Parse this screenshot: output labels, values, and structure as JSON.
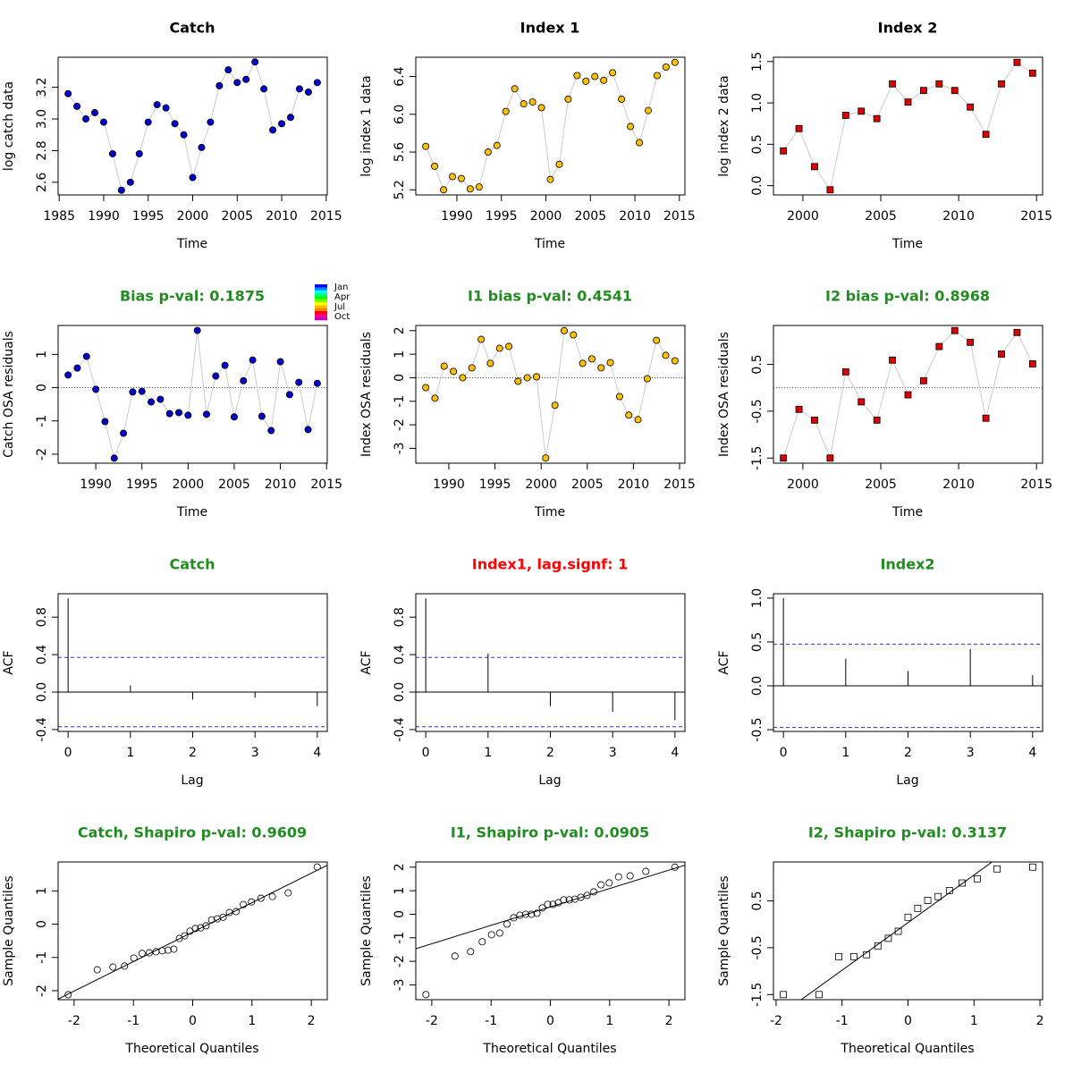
{
  "chart_data": [
    {
      "type": "line",
      "title": "Catch",
      "title_color": "#000000",
      "xlabel": "Time",
      "ylabel": "log catch data",
      "color": "#0000cd",
      "marker": "circle",
      "line_color": "#cccccc",
      "x": [
        1986,
        1987,
        1988,
        1989,
        1990,
        1991,
        1992,
        1993,
        1994,
        1995,
        1996,
        1997,
        1998,
        1999,
        2000,
        2001,
        2002,
        2003,
        2004,
        2005,
        2006,
        2007,
        2008,
        2009,
        2010,
        2011,
        2012,
        2013,
        2014
      ],
      "values": [
        3.16,
        3.08,
        3.0,
        3.04,
        2.98,
        2.78,
        2.55,
        2.6,
        2.78,
        2.98,
        3.09,
        3.07,
        2.97,
        2.9,
        2.63,
        2.82,
        2.98,
        3.21,
        3.31,
        3.23,
        3.25,
        3.36,
        3.19,
        2.93,
        2.97,
        3.01,
        3.19,
        3.17,
        3.23
      ],
      "xlim": [
        1984.88,
        2015.12
      ],
      "ylim": [
        2.52,
        3.39
      ],
      "xticks": [
        1985,
        1990,
        1995,
        2000,
        2005,
        2010,
        2015
      ],
      "yticks": [
        2.6,
        2.8,
        {
          "value": 3,
          "label": "3.0"
        },
        3.2
      ]
    },
    {
      "type": "line",
      "title": "Index 1",
      "title_color": "#000000",
      "xlabel": "Time",
      "ylabel": "log index 1 data",
      "color": "#ffc000",
      "marker": "circle",
      "line_color": "#cccccc",
      "x": [
        1986.5,
        1987.5,
        1988.5,
        1989.5,
        1990.5,
        1991.5,
        1992.5,
        1993.5,
        1994.5,
        1995.5,
        1996.5,
        1997.5,
        1998.5,
        1999.5,
        2000.5,
        2001.5,
        2002.5,
        2003.5,
        2004.5,
        2005.5,
        2006.5,
        2007.5,
        2008.5,
        2009.5,
        2010.5,
        2011.5,
        2012.5,
        2013.5,
        2014.5
      ],
      "values": [
        5.66,
        5.45,
        5.2,
        5.34,
        5.32,
        5.21,
        5.23,
        5.6,
        5.67,
        6.03,
        6.27,
        6.11,
        6.13,
        6.07,
        5.31,
        5.47,
        6.16,
        6.41,
        6.35,
        6.4,
        6.36,
        6.44,
        6.16,
        5.87,
        5.7,
        6.04,
        6.41,
        6.5,
        6.55
      ],
      "xlim": [
        1985.38,
        2015.62
      ],
      "ylim": [
        5.146,
        6.604
      ],
      "xticks": [
        1990,
        1995,
        2000,
        2005,
        2010,
        2015
      ],
      "yticks": [
        5.2,
        5.6,
        {
          "value": 6,
          "label": "6.0"
        },
        6.4
      ]
    },
    {
      "type": "line",
      "title": "Index 2",
      "title_color": "#000000",
      "xlabel": "Time",
      "ylabel": "log index 2 data",
      "color": "#dd0000",
      "marker": "square",
      "line_color": "#cccccc",
      "x": [
        1998.75,
        1999.75,
        2000.75,
        2001.75,
        2002.75,
        2003.75,
        2004.75,
        2005.75,
        2006.75,
        2007.75,
        2008.75,
        2009.75,
        2010.75,
        2011.75,
        2012.75,
        2013.75,
        2014.75
      ],
      "values": [
        0.42,
        0.69,
        0.23,
        -0.05,
        0.85,
        0.9,
        0.81,
        1.23,
        1.01,
        1.15,
        1.23,
        1.15,
        0.95,
        0.62,
        1.23,
        1.49,
        1.36
      ],
      "xlim": [
        1998.11,
        2015.39
      ],
      "ylim": [
        -0.112,
        1.552
      ],
      "xticks": [
        2000,
        2005,
        2010,
        2015
      ],
      "yticks": [
        {
          "value": 0,
          "label": "0.0"
        },
        0.5,
        {
          "value": 1,
          "label": "1.0"
        },
        1.5
      ]
    },
    {
      "type": "line",
      "title": "Bias p-val: 0.1875",
      "title_color": "#228b22",
      "xlabel": "Time",
      "ylabel": "Catch OSA residuals",
      "color": "#0000cd",
      "marker": "circle",
      "line_color": "#cccccc",
      "zero_line": true,
      "legend_labels": [
        "Jan",
        "Apr",
        "Jul",
        "Oct"
      ],
      "legend_colors": [
        "#0000ff",
        "#0080ff",
        "#00ffff",
        "#00ff80",
        "#00ff00",
        "#80ff00",
        "#ffff00",
        "#ffc000",
        "#ff8000",
        "#ff0000",
        "#ff0080",
        "#c000c0"
      ],
      "x": [
        1987,
        1988,
        1989,
        1990,
        1991,
        1992,
        1993,
        1994,
        1995,
        1996,
        1997,
        1998,
        1999,
        2000,
        2001,
        2002,
        2003,
        2004,
        2005,
        2006,
        2007,
        2008,
        2009,
        2010,
        2011,
        2012,
        2013,
        2014
      ],
      "values": [
        0.38,
        0.59,
        0.94,
        -0.05,
        -1.02,
        -2.12,
        -1.37,
        -0.13,
        -0.11,
        -0.43,
        -0.35,
        -0.78,
        -0.75,
        -0.83,
        1.72,
        -0.8,
        0.35,
        0.67,
        -0.88,
        0.21,
        0.83,
        -0.86,
        -1.29,
        0.78,
        -0.21,
        0.16,
        -1.26,
        0.13
      ],
      "xlim": [
        1985.92,
        2015.08
      ],
      "ylim": [
        -2.27,
        1.87
      ],
      "xticks": [
        1990,
        1995,
        2000,
        2005,
        2010,
        2015
      ],
      "yticks": [
        -2,
        -1,
        0,
        1
      ]
    },
    {
      "type": "line",
      "title": "I1 bias p-val: 0.4541",
      "title_color": "#228b22",
      "xlabel": "Time",
      "ylabel": "Index OSA residuals",
      "color": "#ffc000",
      "marker": "circle",
      "line_color": "#cccccc",
      "zero_line": true,
      "x": [
        1987.5,
        1988.5,
        1989.5,
        1990.5,
        1991.5,
        1992.5,
        1993.5,
        1994.5,
        1995.5,
        1996.5,
        1997.5,
        1998.5,
        1999.5,
        2000.5,
        2001.5,
        2002.5,
        2003.5,
        2004.5,
        2005.5,
        2006.5,
        2007.5,
        2008.5,
        2009.5,
        2010.5,
        2011.5,
        2012.5,
        2013.5,
        2014.5
      ],
      "values": [
        -0.42,
        -0.87,
        0.49,
        0.27,
        0.0,
        0.42,
        1.63,
        0.61,
        1.25,
        1.33,
        -0.15,
        0.0,
        0.04,
        -3.41,
        -1.17,
        2.0,
        1.82,
        0.61,
        0.8,
        0.42,
        0.64,
        -0.8,
        -1.59,
        -1.78,
        -0.04,
        1.59,
        0.95,
        0.72
      ],
      "xlim": [
        1986.42,
        2015.58
      ],
      "ylim": [
        -3.63,
        2.22
      ],
      "xticks": [
        1990,
        1995,
        2000,
        2005,
        2010,
        2015
      ],
      "yticks": [
        -3,
        -2,
        -1,
        0,
        1,
        2
      ]
    },
    {
      "type": "line",
      "title": "I2 bias p-val: 0.8968",
      "title_color": "#228b22",
      "xlabel": "Time",
      "ylabel": "Index OSA residuals",
      "color": "#dd0000",
      "marker": "square",
      "line_color": "#cccccc",
      "zero_line": true,
      "x": [
        1998.75,
        1999.75,
        2000.75,
        2001.75,
        2002.75,
        2003.75,
        2004.75,
        2005.75,
        2006.75,
        2007.75,
        2008.75,
        2009.75,
        2010.75,
        2011.75,
        2012.75,
        2013.75,
        2014.75
      ],
      "values": [
        -1.5,
        -0.46,
        -0.69,
        -1.5,
        0.34,
        -0.3,
        -0.69,
        0.59,
        -0.15,
        0.15,
        0.88,
        1.22,
        0.97,
        -0.65,
        0.72,
        1.18,
        0.51
      ],
      "xlim": [
        1998.11,
        2015.39
      ],
      "ylim": [
        -1.609,
        1.329
      ],
      "xticks": [
        2000,
        2005,
        2010,
        2015
      ],
      "yticks": [
        -1.5,
        -0.5,
        0.5
      ]
    },
    {
      "type": "stem",
      "title": "Catch",
      "title_color": "#228b22",
      "xlabel": "Lag",
      "ylabel": "ACF",
      "color": "#000000",
      "ci": 0.37,
      "ci_color": "#3333cc",
      "x": [
        0,
        1,
        2,
        3,
        4
      ],
      "values": [
        1,
        0.07,
        -0.08,
        -0.06,
        -0.15
      ],
      "xlim": [
        -0.16,
        4.16
      ],
      "ylim": [
        -0.42,
        1.05
      ],
      "xticks": [
        0,
        1,
        2,
        3,
        4
      ],
      "yticks": [
        -0.4,
        {
          "value": 0,
          "label": "0.0"
        },
        0.4,
        0.8
      ]
    },
    {
      "type": "stem",
      "title": "Index1, lag.signf: 1",
      "title_color": "#ff0000",
      "xlabel": "Lag",
      "ylabel": "ACF",
      "color": "#000000",
      "ci": 0.37,
      "ci_color": "#3333cc",
      "x": [
        0,
        1,
        2,
        3,
        4
      ],
      "values": [
        1,
        0.41,
        -0.15,
        -0.21,
        -0.3
      ],
      "xlim": [
        -0.16,
        4.16
      ],
      "ylim": [
        -0.42,
        1.05
      ],
      "xticks": [
        0,
        1,
        2,
        3,
        4
      ],
      "yticks": [
        -0.4,
        {
          "value": 0,
          "label": "0.0"
        },
        0.4,
        0.8
      ]
    },
    {
      "type": "stem",
      "title": "Index2",
      "title_color": "#228b22",
      "xlabel": "Lag",
      "ylabel": "ACF",
      "color": "#000000",
      "ci": 0.475,
      "ci_color": "#3333cc",
      "x": [
        0,
        1,
        2,
        3,
        4
      ],
      "values": [
        1,
        0.31,
        0.17,
        0.42,
        0.12
      ],
      "xlim": [
        -0.16,
        4.16
      ],
      "ylim": [
        -0.52,
        1.05
      ],
      "xticks": [
        0,
        1,
        2,
        3,
        4
      ],
      "yticks": [
        -0.5,
        {
          "value": 0,
          "label": "0.0"
        },
        0.5,
        {
          "value": 1,
          "label": "1.0"
        }
      ]
    },
    {
      "type": "scatter",
      "title": "Catch, Shapiro p-val: 0.9609",
      "title_color": "#228b22",
      "xlabel": "Theoretical Quantiles",
      "ylabel": "Sample Quantiles",
      "color": "#000000",
      "marker": "circle",
      "qqline": true,
      "x": [
        -2.1,
        -1.61,
        -1.345,
        -1.15,
        -0.992,
        -0.854,
        -0.732,
        -0.619,
        -0.514,
        -0.415,
        -0.319,
        -0.225,
        -0.135,
        -0.045,
        0.045,
        0.135,
        0.225,
        0.319,
        0.415,
        0.514,
        0.619,
        0.732,
        0.854,
        0.992,
        1.15,
        1.345,
        1.61,
        2.1
      ],
      "values": [
        -2.12,
        -1.37,
        -1.29,
        -1.26,
        -1.02,
        -0.88,
        -0.86,
        -0.83,
        -0.8,
        -0.78,
        -0.75,
        -0.43,
        -0.35,
        -0.21,
        -0.13,
        -0.11,
        -0.05,
        0.13,
        0.16,
        0.21,
        0.35,
        0.38,
        0.59,
        0.67,
        0.78,
        0.83,
        0.94,
        1.72
      ],
      "xlim": [
        -2.27,
        2.27
      ],
      "ylim": [
        -2.27,
        1.87
      ],
      "xticks": [
        -2,
        -1,
        0,
        1,
        2
      ],
      "yticks": [
        -2,
        -1,
        0,
        1
      ]
    },
    {
      "type": "scatter",
      "title": "I1, Shapiro p-val: 0.0905",
      "title_color": "#228b22",
      "xlabel": "Theoretical Quantiles",
      "ylabel": "Sample Quantiles",
      "color": "#000000",
      "marker": "circle",
      "qqline": true,
      "x": [
        -2.1,
        -1.61,
        -1.345,
        -1.15,
        -0.992,
        -0.854,
        -0.732,
        -0.619,
        -0.514,
        -0.415,
        -0.319,
        -0.225,
        -0.135,
        -0.045,
        0.045,
        0.135,
        0.225,
        0.319,
        0.415,
        0.514,
        0.619,
        0.732,
        0.854,
        0.992,
        1.15,
        1.345,
        1.61,
        2.1
      ],
      "values": [
        -3.41,
        -1.78,
        -1.59,
        -1.17,
        -0.87,
        -0.8,
        -0.42,
        -0.15,
        -0.04,
        0.0,
        0.0,
        0.04,
        0.27,
        0.42,
        0.42,
        0.49,
        0.61,
        0.61,
        0.64,
        0.72,
        0.8,
        0.95,
        1.25,
        1.33,
        1.59,
        1.63,
        1.82,
        2.0
      ],
      "xlim": [
        -2.27,
        2.27
      ],
      "ylim": [
        -3.63,
        2.22
      ],
      "xticks": [
        -2,
        -1,
        0,
        1,
        2
      ],
      "yticks": [
        -3,
        -2,
        -1,
        0,
        1,
        2
      ]
    },
    {
      "type": "scatter",
      "title": "I2, Shapiro p-val: 0.3137",
      "title_color": "#228b22",
      "xlabel": "Theoretical Quantiles",
      "ylabel": "Sample Quantiles",
      "color": "#000000",
      "marker": "square",
      "qqline": true,
      "x": [
        -1.89,
        -1.35,
        -1.049,
        -0.821,
        -0.628,
        -0.457,
        -0.299,
        -0.148,
        0,
        0.148,
        0.299,
        0.457,
        0.628,
        0.821,
        1.049,
        1.35,
        1.89
      ],
      "values": [
        -1.5,
        -1.5,
        -0.69,
        -0.69,
        -0.65,
        -0.46,
        -0.3,
        -0.15,
        0.15,
        0.34,
        0.51,
        0.59,
        0.72,
        0.88,
        0.97,
        1.18,
        1.22
      ],
      "xlim": [
        -2.04,
        2.04
      ],
      "ylim": [
        -1.609,
        1.329
      ],
      "xticks": [
        -2,
        -1,
        0,
        1,
        2
      ],
      "yticks": [
        -1.5,
        -0.5,
        0.5
      ]
    }
  ]
}
